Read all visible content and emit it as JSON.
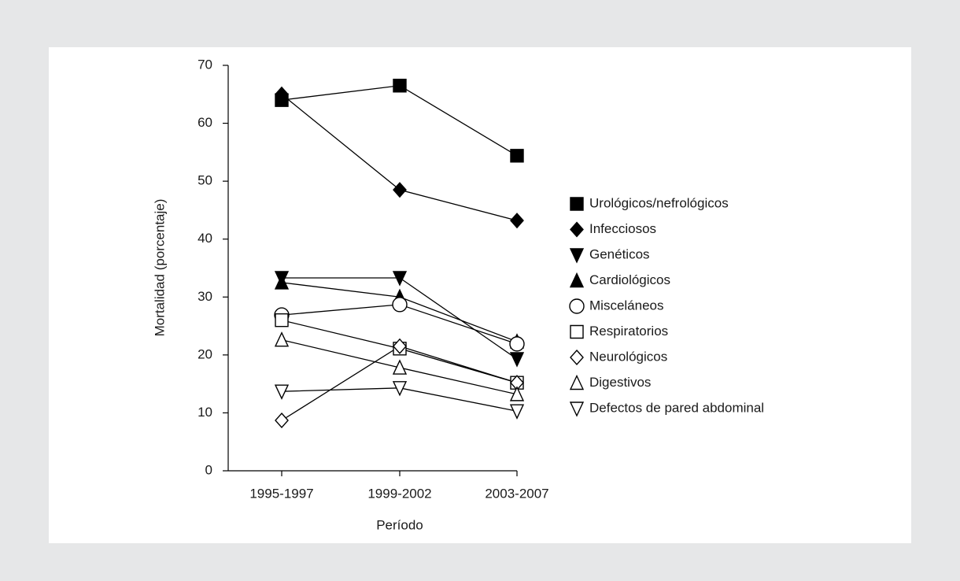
{
  "chart_data": {
    "type": "line",
    "x_label": "Período",
    "y_label": "Mortalidad (porcentaje)",
    "categories": [
      "1995-1997",
      "1999-2002",
      "2003-2007"
    ],
    "ylim": [
      0,
      70
    ],
    "yticks": [
      0,
      10,
      20,
      30,
      40,
      50,
      60,
      70
    ],
    "legend": "right",
    "series": [
      {
        "name": "Urológicos/nefrológicos",
        "color": "#000000",
        "marker": "square",
        "filled": true,
        "values": [
          64,
          66.5,
          54.4
        ]
      },
      {
        "name": "Infecciosos",
        "color": "#000000",
        "marker": "diamond",
        "filled": true,
        "values": [
          65,
          48.5,
          43.2
        ]
      },
      {
        "name": "Genéticos",
        "color": "#000000",
        "marker": "triangle-down",
        "filled": true,
        "values": [
          33.3,
          33.3,
          19.3
        ]
      },
      {
        "name": "Cardiológicos",
        "color": "#000000",
        "marker": "triangle-up",
        "filled": true,
        "values": [
          32.5,
          30,
          22.3
        ]
      },
      {
        "name": "Misceláneos",
        "color": "#000000",
        "marker": "circle",
        "filled": false,
        "values": [
          26.9,
          28.7,
          21.9
        ]
      },
      {
        "name": "Respiratorios",
        "color": "#000000",
        "marker": "square",
        "filled": false,
        "values": [
          26,
          21.1,
          15.2
        ]
      },
      {
        "name": "Neurológicos",
        "color": "#000000",
        "marker": "diamond",
        "filled": false,
        "values": [
          8.7,
          21.5,
          15.2
        ]
      },
      {
        "name": "Digestivos",
        "color": "#000000",
        "marker": "triangle-up",
        "filled": false,
        "values": [
          22.6,
          17.8,
          13.2
        ]
      },
      {
        "name": "Defectos de pared abdominal",
        "color": "#000000",
        "marker": "triangle-down",
        "filled": false,
        "values": [
          13.7,
          14.3,
          10.3
        ]
      }
    ]
  }
}
